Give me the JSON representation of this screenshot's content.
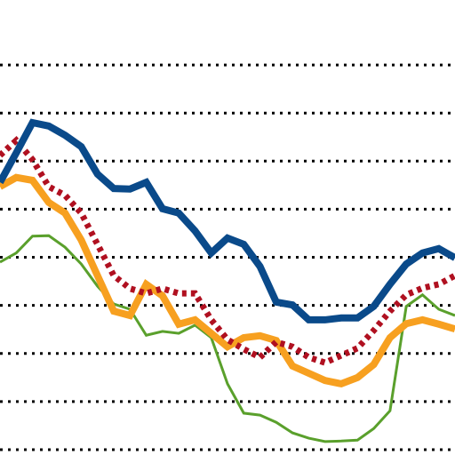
{
  "chart_data": {
    "type": "line",
    "x": [
      0,
      1,
      2,
      3,
      4,
      5,
      6,
      7,
      8,
      9,
      10,
      11,
      12,
      13,
      14,
      15,
      16,
      17,
      18,
      19,
      20,
      21,
      22,
      23,
      24,
      25,
      26,
      27,
      28
    ],
    "xlim": [
      0,
      28
    ],
    "ylim": [
      -0.11,
      9.35
    ],
    "yticks": [
      0,
      1,
      2,
      3,
      4,
      5,
      6,
      7,
      8
    ],
    "grid": true,
    "series": [
      {
        "color": "#5aa02c",
        "style": "thin",
        "values": [
          3.9,
          4.09,
          4.44,
          4.45,
          4.21,
          3.86,
          3.4,
          3.03,
          2.92,
          2.38,
          2.46,
          2.42,
          2.59,
          2.33,
          1.37,
          0.76,
          0.72,
          0.57,
          0.35,
          0.24,
          0.17,
          0.18,
          0.2,
          0.44,
          0.81,
          2.98,
          3.22,
          2.92,
          2.79
        ]
      },
      {
        "color": "#f7a020",
        "style": "thick",
        "values": [
          5.47,
          5.66,
          5.6,
          5.14,
          4.92,
          4.36,
          3.62,
          2.88,
          2.79,
          3.44,
          3.2,
          2.61,
          2.7,
          2.42,
          2.14,
          2.33,
          2.37,
          2.27,
          1.74,
          1.59,
          1.44,
          1.37,
          1.5,
          1.77,
          2.33,
          2.62,
          2.7,
          2.61,
          2.51
        ]
      },
      {
        "color": "#b01020",
        "style": "dotted",
        "values": [
          6.12,
          6.43,
          6.03,
          5.47,
          5.29,
          4.92,
          4.27,
          3.62,
          3.35,
          3.25,
          3.35,
          3.25,
          3.25,
          2.7,
          2.29,
          2.09,
          1.92,
          2.24,
          2.14,
          1.92,
          1.81,
          1.96,
          2.11,
          2.48,
          2.88,
          3.22,
          3.36,
          3.44,
          3.62
        ]
      },
      {
        "color": "#0a4a8a",
        "style": "thick",
        "values": [
          5.56,
          6.17,
          6.8,
          6.73,
          6.54,
          6.3,
          5.73,
          5.43,
          5.42,
          5.56,
          5.01,
          4.92,
          4.55,
          4.09,
          4.4,
          4.27,
          3.81,
          3.07,
          3.01,
          2.7,
          2.7,
          2.74,
          2.74,
          2.98,
          3.44,
          3.86,
          4.09,
          4.18,
          3.99
        ]
      }
    ]
  }
}
